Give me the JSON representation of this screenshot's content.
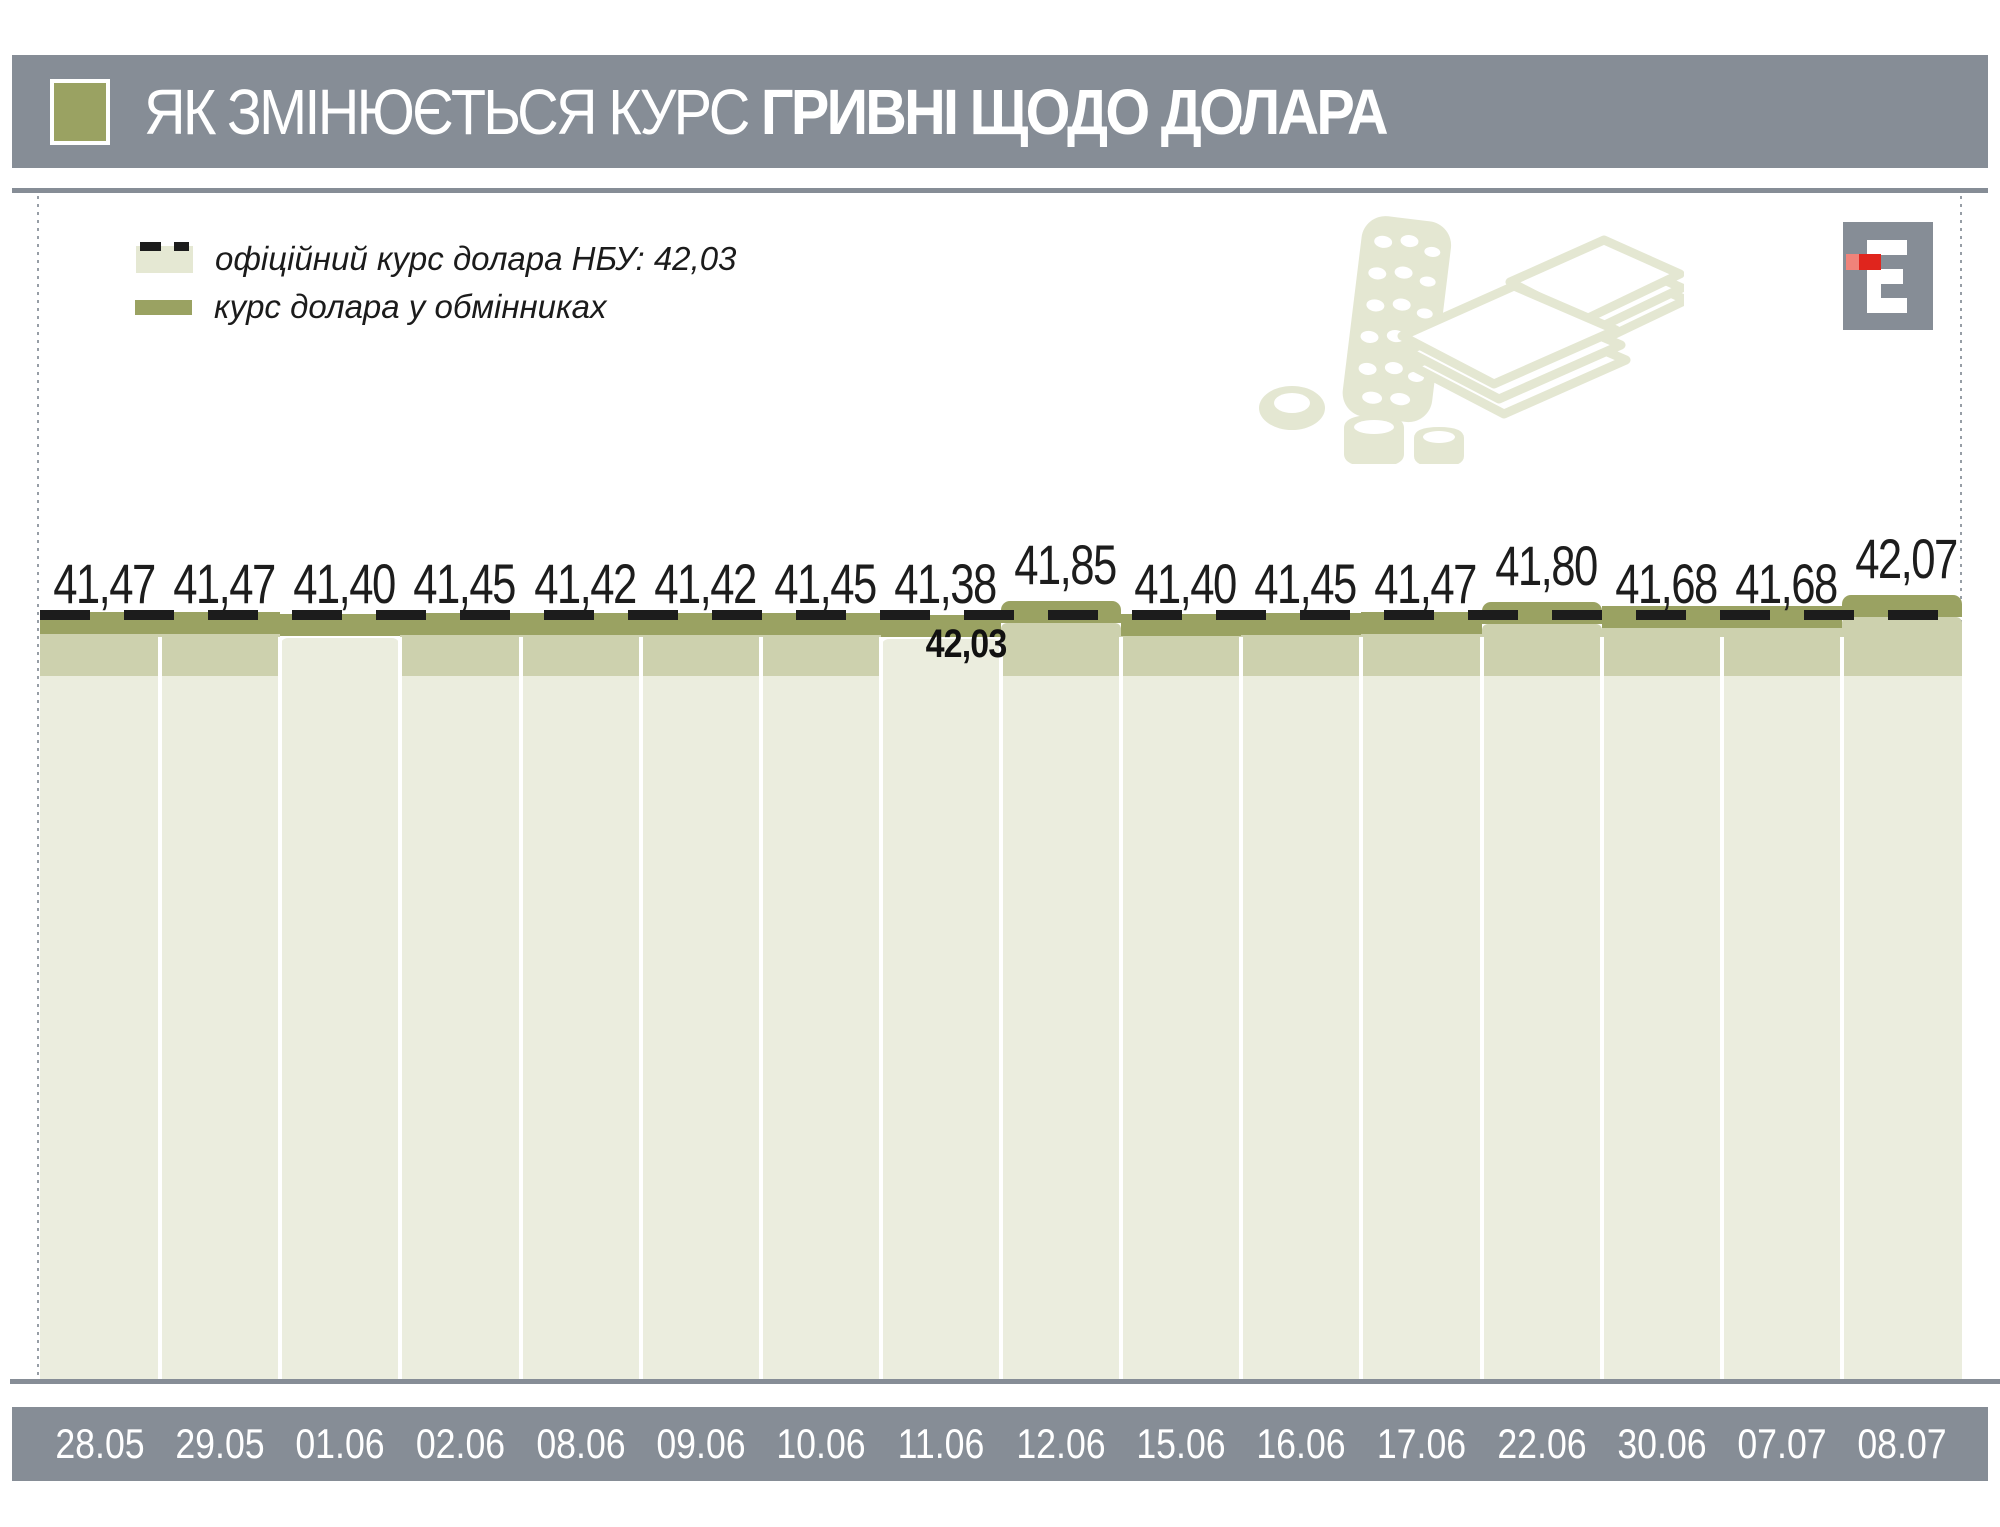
{
  "header": {
    "title_regular": "ЯК ЗМІНЮЄТЬСЯ КУРС ",
    "title_bold": "ГРИВНІ ЩОДО ДОЛАРА"
  },
  "legend": {
    "official_label": "офіційний курс долара НБУ: 42,03",
    "exchange_label": "курс долара у обмінниках"
  },
  "chart_data": {
    "type": "area",
    "title": "Як змінюється курс гривні щодо долара",
    "categories": [
      "28.05",
      "29.05",
      "01.06",
      "02.06",
      "08.06",
      "09.06",
      "10.06",
      "11.06",
      "12.06",
      "15.06",
      "16.06",
      "17.06",
      "22.06",
      "30.06",
      "07.07",
      "08.07"
    ],
    "series": [
      {
        "name": "курс долара у обмінниках",
        "values": [
          41.47,
          41.47,
          41.4,
          41.45,
          41.42,
          41.42,
          41.45,
          41.38,
          41.85,
          41.4,
          41.45,
          41.47,
          41.8,
          41.68,
          41.68,
          42.07
        ]
      },
      {
        "name": "офіційний курс долара НБУ",
        "values": [
          42.03,
          42.03,
          42.03,
          42.03,
          42.03,
          42.03,
          42.03,
          42.03,
          42.03,
          42.03,
          42.03,
          42.03,
          42.03,
          42.03,
          42.03,
          42.03
        ]
      }
    ],
    "point_labels": [
      "41,47",
      "41,47",
      "41,40",
      "41,45",
      "41,42",
      "41,42",
      "41,45",
      "41,38",
      "41,85",
      "41,40",
      "41,45",
      "41,47",
      "41,80",
      "41,68",
      "41,68",
      "42,07"
    ],
    "annotation": "42,03",
    "legend_position": "top-left",
    "grid": false,
    "ylim": [
      41.3,
      42.1
    ],
    "render_hints": {
      "raised_columns": [
        8,
        12,
        15
      ],
      "no_inner_band_columns": [
        2,
        7
      ]
    }
  },
  "colors": {
    "bar_gray": "#868d96",
    "olive": "#9aa262",
    "inner_band": "#cdd1ae",
    "area_light": "#ebedde",
    "legend_swatch_beige": "#e5e8d3",
    "icon_beige": "#e4e7d2",
    "dash_black": "#1c1c1c",
    "logo_red_light": "#f0837a",
    "logo_red_dark": "#e0251d",
    "text_dark": "#1d1d1d",
    "text_white": "#ffffff"
  }
}
